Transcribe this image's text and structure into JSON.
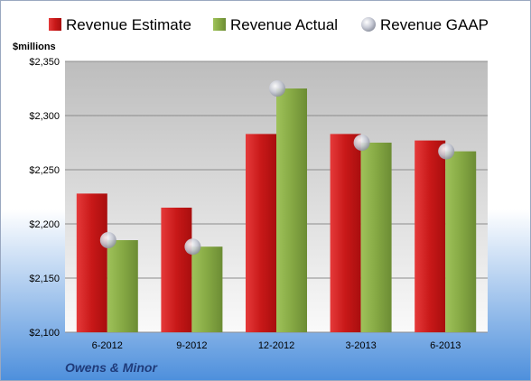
{
  "legend": {
    "estimate": "Revenue Estimate",
    "actual": "Revenue Actual",
    "gaap": "Revenue GAAP"
  },
  "unit_label": "$millions",
  "company": "Owens & Minor",
  "colors": {
    "estimate": "#d42020",
    "actual": "#8db04a",
    "gaap": "#c8cbd6",
    "bg_top": "#ffffff",
    "bg_bottom": "#4d8fdc",
    "plot_top": "#bdbdbd",
    "plot_bottom": "#fafafa",
    "company_text": "#1f3b7a"
  },
  "chart_data": {
    "type": "bar",
    "categories": [
      "6-2012",
      "9-2012",
      "12-2012",
      "3-2013",
      "6-2013"
    ],
    "series": [
      {
        "name": "Revenue Estimate",
        "values": [
          2228,
          2215,
          2283,
          2283,
          2277
        ]
      },
      {
        "name": "Revenue Actual",
        "values": [
          2185,
          2179,
          2325,
          2275,
          2267
        ]
      },
      {
        "name": "Revenue GAAP",
        "values": [
          2185,
          2179,
          2325,
          2275,
          2267
        ],
        "style": "marker"
      }
    ],
    "ylabel": "$millions",
    "ylim": [
      2100,
      2350
    ],
    "yticks": [
      2100,
      2150,
      2200,
      2250,
      2300,
      2350
    ],
    "ytick_labels": [
      "$2,100",
      "$2,150",
      "$2,200",
      "$2,250",
      "$2,300",
      "$2,350"
    ],
    "grid": true,
    "legend_position": "top"
  }
}
